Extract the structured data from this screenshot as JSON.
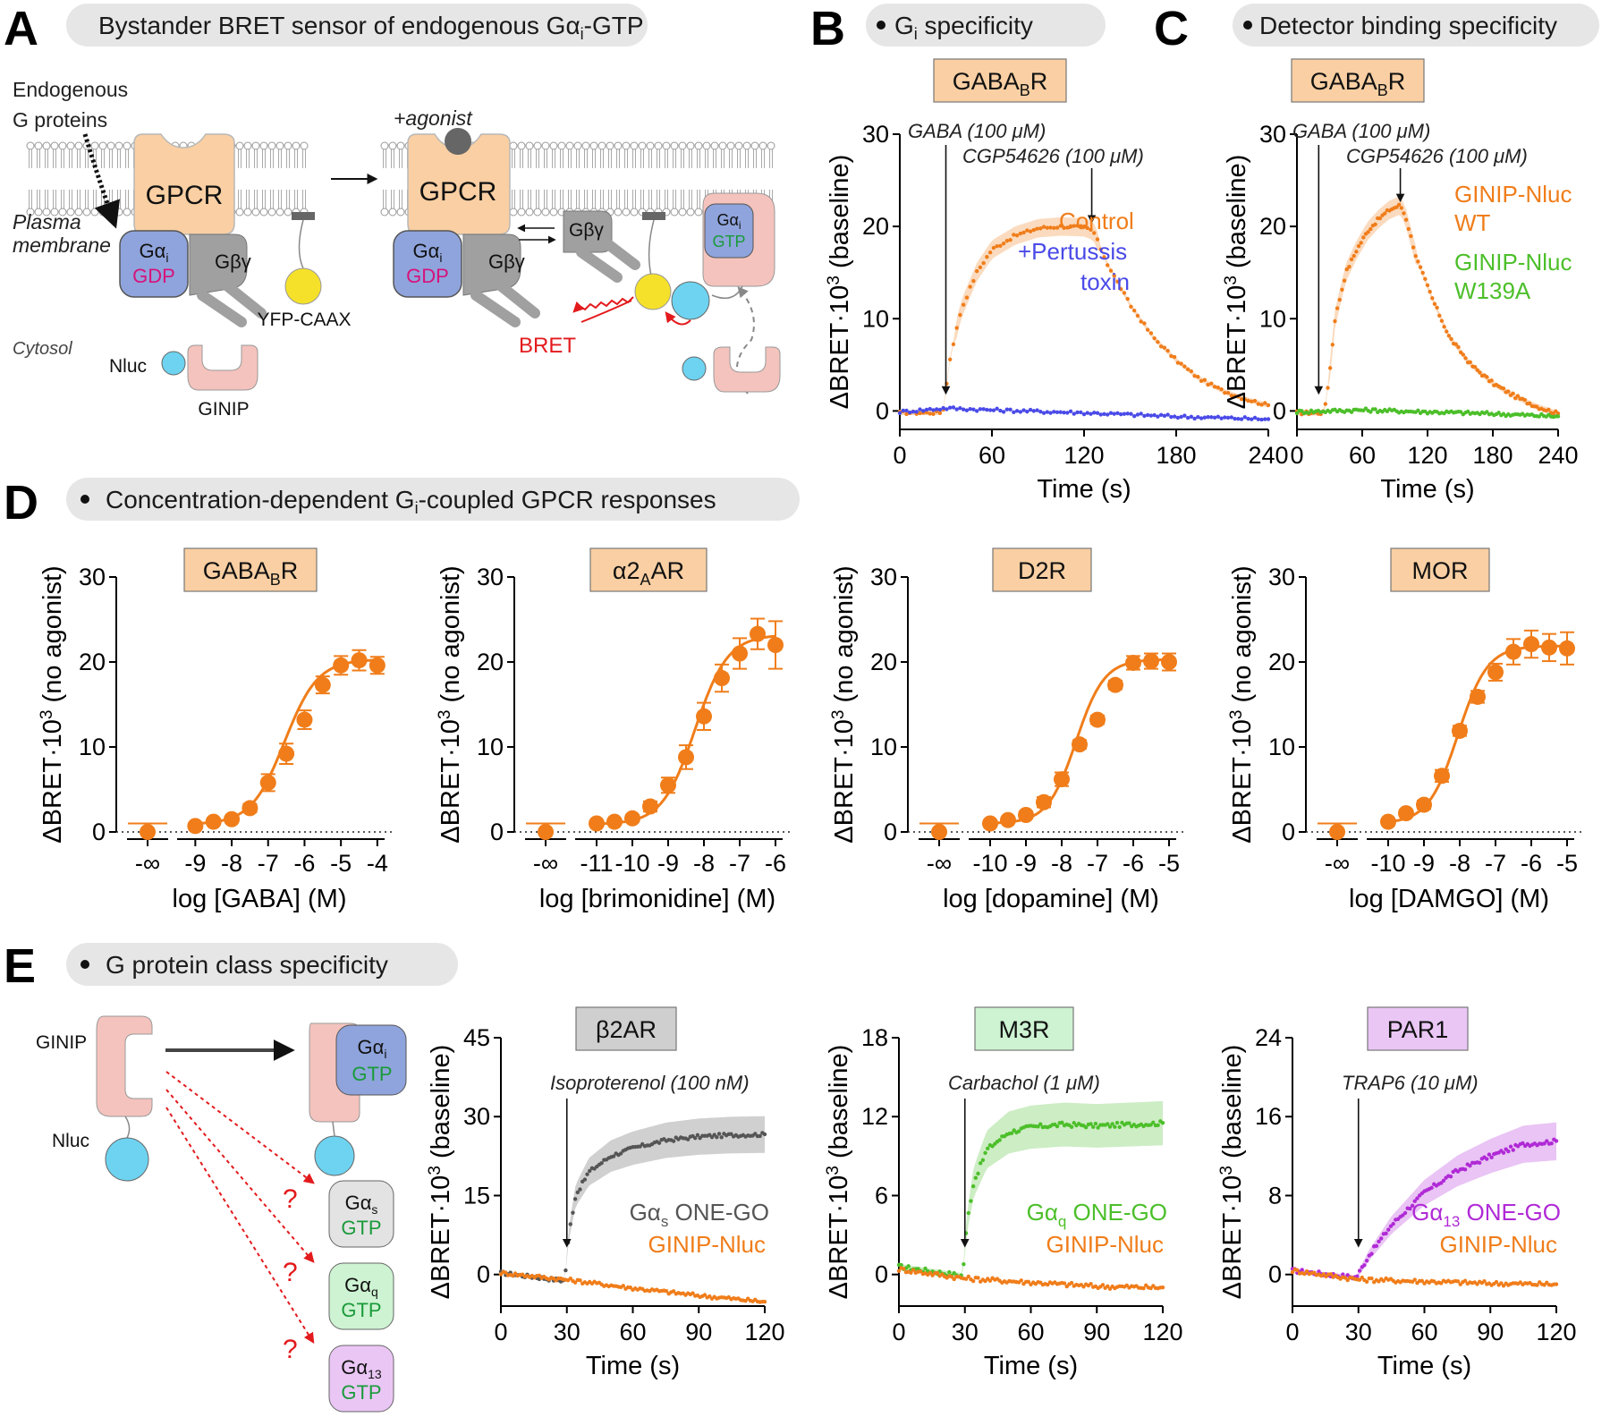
{
  "panels": {
    "A": {
      "letter": "A",
      "header": "Bystander BRET sensor of endogenous Gα",
      "header_sub": "i",
      "header_tail": "-GTP",
      "endogenous_label_1": "Endogenous",
      "endogenous_label_2": "G proteins",
      "agonist_label": "+agonist",
      "gpcr_label": "GPCR",
      "plasma_label_1": "Plasma",
      "plasma_label_2": "membrane",
      "galpha_label": "Gα",
      "galpha_sub": "i",
      "gdp_label": "GDP",
      "gtp_label": "GTP",
      "gbg_label": "Gβγ",
      "yfp_label": "YFP-CAAX",
      "cytosol_label": "Cytosol",
      "nluc_label": "Nluc",
      "ginip_label": "GINIP",
      "bret_label": "BRET",
      "colors": {
        "gpcr": "#f9cfa3",
        "galpha": "#8fa4dc",
        "gbg": "#a0a0a0",
        "yfp": "#f5e12a",
        "nluc": "#6dd3f0",
        "ginip": "#f4c3bd",
        "gdp": "#d6127a",
        "gtp": "#1a9a3a",
        "bret": "#e31a1c"
      }
    },
    "B": {
      "letter": "B",
      "header": "G",
      "header_sub": "i",
      "header_tail": " specificity"
    },
    "C": {
      "letter": "C",
      "header": "Detector binding specificity"
    },
    "D": {
      "letter": "D",
      "header": "Concentration-dependent G",
      "header_sub": "i",
      "header_tail": "-coupled GPCR responses"
    },
    "E": {
      "letter": "E",
      "header": "G protein class specificity",
      "ginip_label": "GINIP",
      "nluc_label": "Nluc",
      "question": "?",
      "galpha_label": "Gα",
      "gtp_label": "GTP",
      "subs": [
        "i",
        "s",
        "q",
        "13"
      ]
    }
  },
  "chart_data": [
    {
      "id": "B",
      "type": "line",
      "receptor": "GABA",
      "receptor_sub": "B",
      "receptor_tail": "R",
      "xlabel": "Time (s)",
      "ylabel": "ΔBRET·10³ (baseline)",
      "xlim": [
        0,
        240
      ],
      "ylim": [
        -2,
        30
      ],
      "xticks": [
        0,
        60,
        120,
        180,
        240
      ],
      "yticks": [
        0,
        10,
        20,
        30
      ],
      "annotations": [
        "GABA (100 μM)",
        "CGP54626 (100 μM)"
      ],
      "annotation_x": [
        30,
        125
      ],
      "series": [
        {
          "name": "Control",
          "color": "#f07d1a",
          "x": [
            0,
            28,
            33,
            40,
            50,
            60,
            75,
            90,
            105,
            120,
            126,
            135,
            150,
            165,
            180,
            195,
            210,
            225,
            240
          ],
          "y": [
            -0.2,
            -0.2,
            6,
            11,
            15,
            17.5,
            19,
            19.8,
            20,
            19.9,
            19.5,
            16,
            11.5,
            8,
            5.5,
            3.5,
            2.2,
            1.3,
            0.6
          ]
        },
        {
          "name": "+Pertussis toxin",
          "color": "#4a4ae8",
          "x": [
            0,
            30,
            60,
            120,
            180,
            240
          ],
          "y": [
            -0.1,
            0.3,
            0.1,
            -0.2,
            -0.6,
            -0.9
          ]
        }
      ]
    },
    {
      "id": "C",
      "type": "line",
      "receptor": "GABA",
      "receptor_sub": "B",
      "receptor_tail": "R",
      "xlabel": "Time (s)",
      "ylabel": "ΔBRET·10³ (baseline)",
      "xlim": [
        0,
        240
      ],
      "ylim": [
        -2,
        30
      ],
      "xticks": [
        0,
        60,
        120,
        180,
        240
      ],
      "yticks": [
        0,
        10,
        20,
        30
      ],
      "annotations": [
        "GABA (100 μM)",
        "CGP54626 (100 μM)"
      ],
      "annotation_x": [
        20,
        95
      ],
      "series": [
        {
          "name": "GINIP-Nluc WT",
          "color": "#f07d1a",
          "x": [
            0,
            25,
            30,
            35,
            45,
            55,
            65,
            75,
            85,
            95,
            100,
            110,
            125,
            140,
            160,
            180,
            200,
            220,
            240
          ],
          "y": [
            -0.2,
            -0.2,
            4,
            10,
            15,
            17.5,
            19.5,
            20.8,
            21.8,
            22.3,
            21,
            16.5,
            12,
            8,
            5,
            3,
            1.6,
            0.5,
            -0.3
          ]
        },
        {
          "name": "GINIP-Nluc W139A",
          "color": "#4cbf2a",
          "x": [
            0,
            60,
            120,
            180,
            240
          ],
          "y": [
            -0.1,
            0.1,
            -0.1,
            -0.3,
            -0.6
          ]
        }
      ]
    },
    {
      "id": "D1",
      "type": "scatter",
      "receptor": "GABA",
      "receptor_sub": "B",
      "receptor_tail": "R",
      "xlabel": "log [GABA] (M)",
      "ylabel": "ΔBRET·10³ (no agonist)",
      "ylim": [
        0,
        30
      ],
      "yticks": [
        0,
        10,
        20,
        30
      ],
      "xlim": [
        -9.5,
        -3.8
      ],
      "xtick_labels": [
        "-9",
        "-8",
        "-7",
        "-6",
        "-5",
        "-4"
      ],
      "xtick_values": [
        -9,
        -8,
        -7,
        -6,
        -5,
        -4
      ],
      "baseline_label": "-∞",
      "baseline_value": 0,
      "x": [
        -9.0,
        -8.5,
        -8.0,
        -7.5,
        -7.0,
        -6.5,
        -6.0,
        -5.5,
        -5.0,
        -4.5,
        -4.0
      ],
      "values": [
        0.7,
        1.2,
        1.5,
        2.8,
        5.8,
        9.2,
        13.2,
        17.3,
        19.6,
        20.2,
        19.6
      ],
      "errors": [
        0.3,
        0.3,
        0.3,
        0.5,
        1.0,
        1.2,
        1.1,
        1.0,
        1.1,
        1.2,
        1.0
      ],
      "fit": {
        "bottom": 0.9,
        "top": 20.3,
        "logec50": -6.55,
        "hill": 0.95
      },
      "color": "#f07d1a"
    },
    {
      "id": "D2",
      "type": "scatter",
      "receptor": "α2",
      "receptor_sub": "A",
      "receptor_tail": "AR",
      "xlabel": "log [brimonidine] (M)",
      "ylabel": "ΔBRET·10³ (no agonist)",
      "ylim": [
        0,
        30
      ],
      "yticks": [
        0,
        10,
        20,
        30
      ],
      "xlim": [
        -11.6,
        -5.8
      ],
      "xtick_labels": [
        "-11",
        "-10",
        "-9",
        "-8",
        "-7",
        "-6"
      ],
      "xtick_values": [
        -11,
        -10,
        -9,
        -8,
        -7,
        -6
      ],
      "baseline_label": "-∞",
      "baseline_value": 0,
      "x": [
        -11.0,
        -10.5,
        -10.0,
        -9.5,
        -9.0,
        -8.5,
        -8.0,
        -7.5,
        -7.0,
        -6.5,
        -6.0
      ],
      "values": [
        1.0,
        1.2,
        1.6,
        3.0,
        5.5,
        8.8,
        13.6,
        18.1,
        21.0,
        23.3,
        22.0
      ],
      "errors": [
        0.3,
        0.3,
        0.4,
        0.6,
        0.9,
        1.4,
        1.6,
        1.6,
        1.8,
        1.8,
        2.8
      ],
      "fit": {
        "bottom": 0.9,
        "top": 23.2,
        "logec50": -8.25,
        "hill": 0.95
      },
      "color": "#f07d1a"
    },
    {
      "id": "D3",
      "type": "scatter",
      "receptor": "D2R",
      "receptor_sub": "",
      "receptor_tail": "",
      "xlabel": "log [dopamine] (M)",
      "ylabel": "ΔBRET·10³ (no agonist)",
      "ylim": [
        0,
        30
      ],
      "yticks": [
        0,
        10,
        20,
        30
      ],
      "xlim": [
        -10.6,
        -4.8
      ],
      "xtick_labels": [
        "-10",
        "-9",
        "-8",
        "-7",
        "-6",
        "-5"
      ],
      "xtick_values": [
        -10,
        -9,
        -8,
        -7,
        -6,
        -5
      ],
      "baseline_label": "-∞",
      "baseline_value": 0,
      "x": [
        -10.0,
        -9.5,
        -9.0,
        -8.5,
        -8.0,
        -7.5,
        -7.0,
        -6.5,
        -6.0,
        -5.5,
        -5.0
      ],
      "values": [
        1.0,
        1.4,
        2.0,
        3.5,
        6.2,
        10.3,
        13.2,
        17.3,
        19.9,
        20.1,
        20.0
      ],
      "errors": [
        0.3,
        0.3,
        0.4,
        0.6,
        0.8,
        0.5,
        0.5,
        0.5,
        0.8,
        0.9,
        1.0
      ],
      "fit": {
        "bottom": 1.0,
        "top": 20.3,
        "logec50": -7.6,
        "hill": 1.1
      },
      "color": "#f07d1a"
    },
    {
      "id": "D4",
      "type": "scatter",
      "receptor": "MOR",
      "receptor_sub": "",
      "receptor_tail": "",
      "xlabel": "log [DAMGO] (M)",
      "ylabel": "ΔBRET·10³ (no agonist)",
      "ylim": [
        0,
        30
      ],
      "yticks": [
        0,
        10,
        20,
        30
      ],
      "xlim": [
        -10.6,
        -4.8
      ],
      "xtick_labels": [
        "-10",
        "-9",
        "-8",
        "-7",
        "-6",
        "-5"
      ],
      "xtick_values": [
        -10,
        -9,
        -8,
        -7,
        -6,
        -5
      ],
      "baseline_label": "-∞",
      "baseline_value": 0,
      "x": [
        -10.0,
        -9.5,
        -9.0,
        -8.5,
        -8.0,
        -7.5,
        -7.0,
        -6.5,
        -6.0,
        -5.5,
        -5.0
      ],
      "values": [
        1.2,
        2.2,
        3.2,
        6.6,
        11.9,
        15.9,
        18.8,
        21.2,
        22.1,
        21.7,
        21.6
      ],
      "errors": [
        0.3,
        0.4,
        0.5,
        0.7,
        0.6,
        0.7,
        1.0,
        1.5,
        1.6,
        1.6,
        1.9
      ],
      "fit": {
        "bottom": 1.0,
        "top": 21.9,
        "logec50": -8.05,
        "hill": 1.05
      },
      "color": "#f07d1a"
    },
    {
      "id": "E1",
      "type": "line",
      "receptor": "β2AR",
      "receptor_sub": "",
      "receptor_tail": "",
      "xlabel": "Time (s)",
      "ylabel": "ΔBRET·10³ (baseline)",
      "xlim": [
        0,
        120
      ],
      "ylim": [
        -6,
        45
      ],
      "xticks": [
        0,
        30,
        60,
        90,
        120
      ],
      "yticks": [
        0,
        15,
        30,
        45
      ],
      "annotation": "Isoproterenol (100 nM)",
      "annotation_x": 30,
      "series": [
        {
          "name": "Gα",
          "name_sub": "s",
          "name_tail": " ONE-GO",
          "color": "#555555",
          "x": [
            0,
            29,
            31,
            34,
            40,
            50,
            60,
            75,
            90,
            105,
            120
          ],
          "y": [
            0.3,
            -1.2,
            8,
            15,
            19.5,
            22.5,
            24,
            25.5,
            26.2,
            26.5,
            26.6
          ]
        },
        {
          "name": "GINIP-Nluc",
          "color": "#f07d1a",
          "x": [
            0,
            30,
            45,
            60,
            75,
            90,
            105,
            120
          ],
          "y": [
            0.3,
            -1.0,
            -1.8,
            -2.6,
            -3.3,
            -4.0,
            -4.6,
            -5.2
          ]
        }
      ]
    },
    {
      "id": "E2",
      "type": "line",
      "receptor": "M3R",
      "receptor_sub": "",
      "receptor_tail": "",
      "xlabel": "Time (s)",
      "ylabel": "ΔBRET·10³ (baseline)",
      "xlim": [
        0,
        120
      ],
      "ylim": [
        -2.4,
        18
      ],
      "xticks": [
        0,
        30,
        60,
        90,
        120
      ],
      "yticks": [
        0,
        6,
        12,
        18
      ],
      "annotation": "Carbachol (1 μM)",
      "annotation_x": 30,
      "series": [
        {
          "name": "Gα",
          "name_sub": "q",
          "name_tail": " ONE-GO",
          "color": "#4cbf2a",
          "x": [
            0,
            29,
            31,
            34,
            40,
            50,
            60,
            75,
            90,
            105,
            120
          ],
          "y": [
            0.6,
            -0.1,
            4,
            7,
            9.5,
            10.8,
            11.2,
            11.4,
            11.3,
            11.4,
            11.5
          ]
        },
        {
          "name": "GINIP-Nluc",
          "color": "#f07d1a",
          "x": [
            0,
            30,
            60,
            90,
            120
          ],
          "y": [
            0.4,
            -0.3,
            -0.6,
            -0.9,
            -1.0
          ]
        }
      ]
    },
    {
      "id": "E3",
      "type": "line",
      "receptor": "PAR1",
      "receptor_sub": "",
      "receptor_tail": "",
      "xlabel": "Time (s)",
      "ylabel": "ΔBRET·10³ (baseline)",
      "xlim": [
        0,
        120
      ],
      "ylim": [
        -3.2,
        24
      ],
      "xticks": [
        0,
        30,
        60,
        90,
        120
      ],
      "yticks": [
        0,
        8,
        16,
        24
      ],
      "annotation": "TRAP6 (10 μM)",
      "annotation_x": 30,
      "series": [
        {
          "name": "Gα",
          "name_sub": "13",
          "name_tail": " ONE-GO",
          "color": "#b02ad6",
          "x": [
            0,
            29,
            35,
            45,
            60,
            75,
            90,
            105,
            120
          ],
          "y": [
            0.4,
            -0.3,
            2,
            5,
            8.3,
            10.5,
            12,
            13.2,
            13.5
          ]
        },
        {
          "name": "GINIP-Nluc",
          "color": "#f07d1a",
          "x": [
            0,
            30,
            60,
            90,
            120
          ],
          "y": [
            0.4,
            -0.5,
            -0.7,
            -0.9,
            -1.0
          ]
        }
      ]
    }
  ],
  "receptor_box_colors": {
    "orange": "#f9cfa3",
    "gray": "#cfcfcf",
    "green": "#cdf3d2",
    "purple": "#eac6f5"
  }
}
